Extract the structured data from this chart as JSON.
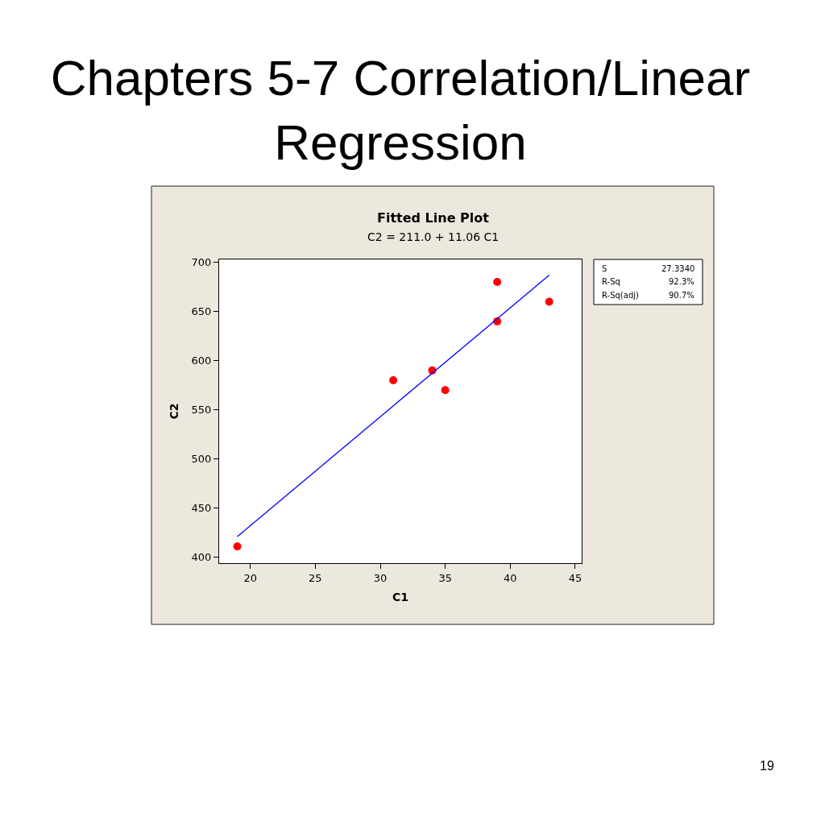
{
  "chart_data": {
    "type": "scatter",
    "title": "Chapters 5-7 Correlation/Linear Regression",
    "subtitle": "Fitted Line Plot",
    "xlabel": "C1",
    "ylabel": "C2",
    "annotations": [
      "C2 = 211.0 + 11.06 C1",
      "S",
      "27.3340",
      "R-Sq",
      "92.3%",
      "R-Sq(adj)",
      "90.7%",
      "19"
    ],
    "series": [
      {
        "color": "#ff0000",
        "marker": "circle",
        "x": [
          19,
          31,
          34,
          35,
          39,
          39,
          43
        ],
        "values": [
          411,
          580,
          590,
          570,
          680,
          640,
          660
        ]
      },
      {
        "type": "line",
        "color": "#0000ff",
        "x": [
          19,
          43
        ],
        "values": [
          421,
          687
        ]
      }
    ],
    "xlim": [
      17.6,
      45.5
    ],
    "ylim": [
      394,
      703
    ],
    "xticks": [
      20,
      25,
      30,
      35,
      40,
      45
    ],
    "yticks": [
      400,
      450,
      500,
      550,
      600,
      650,
      700
    ],
    "grid": false,
    "line_style": "solid"
  }
}
